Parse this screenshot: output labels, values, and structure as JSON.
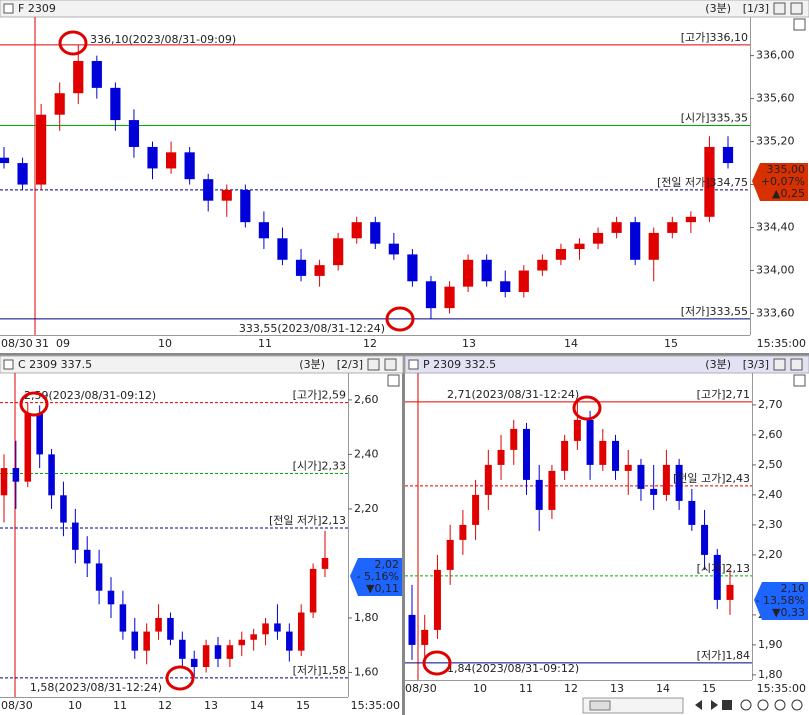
{
  "up_color": "#e00000",
  "down_color": "#0000d8",
  "panels": [
    {
      "title": "F 2309",
      "period": "(3분)",
      "page": "[1/3]",
      "ylim": [
        333.4,
        336.35
      ],
      "yticks": [
        {
          "value": 336.0,
          "label": "336,00"
        },
        {
          "value": 335.6,
          "label": "335,60"
        },
        {
          "value": 335.2,
          "label": "335,20"
        },
        {
          "value": 334.8,
          "label": "334,80"
        },
        {
          "value": 334.4,
          "label": "334,40"
        },
        {
          "value": 334.0,
          "label": "334,00"
        },
        {
          "value": 333.6,
          "label": "333,60"
        }
      ],
      "xlabels": [
        "08/30",
        "31",
        "09",
        "10",
        "11",
        "12",
        "13",
        "14",
        "15",
        "15:35:00"
      ],
      "refs": [
        {
          "label": "[고가]336,10",
          "value": 336.1,
          "color": "#e00000",
          "dash": false
        },
        {
          "label": "[시가]335,35",
          "value": 335.35,
          "color": "#00b000",
          "dash": false
        },
        {
          "label": "[전일 저가]334,75",
          "value": 334.75,
          "color": "#000080",
          "dash": true
        },
        {
          "label": "[저가]333,55",
          "value": 333.55,
          "color": "#000080",
          "dash": false
        }
      ],
      "annotations": [
        "336,10(2023/08/31-09:09)",
        "333,55(2023/08/31-12:24)"
      ],
      "tag": {
        "lines": [
          "335,00",
          "+0,07%",
          "▲0,25"
        ],
        "color": "#d83000"
      },
      "candles": [
        [
          335.05,
          335.15,
          334.95,
          335.0
        ],
        [
          335.0,
          335.05,
          334.75,
          334.8
        ],
        [
          334.8,
          335.55,
          334.75,
          335.45
        ],
        [
          335.45,
          335.75,
          335.3,
          335.65
        ],
        [
          335.65,
          336.1,
          335.55,
          335.95
        ],
        [
          335.95,
          336.0,
          335.6,
          335.7
        ],
        [
          335.7,
          335.75,
          335.3,
          335.4
        ],
        [
          335.4,
          335.5,
          335.05,
          335.15
        ],
        [
          335.15,
          335.2,
          334.85,
          334.95
        ],
        [
          334.95,
          335.2,
          334.9,
          335.1
        ],
        [
          335.1,
          335.15,
          334.8,
          334.85
        ],
        [
          334.85,
          334.9,
          334.55,
          334.65
        ],
        [
          334.65,
          334.8,
          334.5,
          334.75
        ],
        [
          334.75,
          334.8,
          334.4,
          334.45
        ],
        [
          334.45,
          334.55,
          334.2,
          334.3
        ],
        [
          334.3,
          334.4,
          334.05,
          334.1
        ],
        [
          334.1,
          334.2,
          333.9,
          333.95
        ],
        [
          333.95,
          334.1,
          333.85,
          334.05
        ],
        [
          334.05,
          334.35,
          334.0,
          334.3
        ],
        [
          334.3,
          334.5,
          334.25,
          334.45
        ],
        [
          334.45,
          334.5,
          334.2,
          334.25
        ],
        [
          334.25,
          334.35,
          334.1,
          334.15
        ],
        [
          334.15,
          334.2,
          333.85,
          333.9
        ],
        [
          333.9,
          333.95,
          333.55,
          333.65
        ],
        [
          333.65,
          333.9,
          333.6,
          333.85
        ],
        [
          333.85,
          334.15,
          333.8,
          334.1
        ],
        [
          334.1,
          334.15,
          333.85,
          333.9
        ],
        [
          333.9,
          334.0,
          333.75,
          333.8
        ],
        [
          333.8,
          334.05,
          333.75,
          334.0
        ],
        [
          334.0,
          334.15,
          333.95,
          334.1
        ],
        [
          334.1,
          334.25,
          334.05,
          334.2
        ],
        [
          334.2,
          334.3,
          334.1,
          334.25
        ],
        [
          334.25,
          334.4,
          334.2,
          334.35
        ],
        [
          334.35,
          334.5,
          334.3,
          334.45
        ],
        [
          334.45,
          334.5,
          334.05,
          334.1
        ],
        [
          334.1,
          334.4,
          333.9,
          334.35
        ],
        [
          334.35,
          334.5,
          334.3,
          334.45
        ],
        [
          334.45,
          334.55,
          334.35,
          334.5
        ],
        [
          334.5,
          335.25,
          334.45,
          335.15
        ],
        [
          335.15,
          335.25,
          334.95,
          335.0
        ]
      ]
    },
    {
      "title": "C 2309 337.5",
      "period": "(3분)",
      "page": "[2/3]",
      "ylim": [
        1.51,
        2.695
      ],
      "yticks": [
        {
          "value": 2.6,
          "label": "2,60"
        },
        {
          "value": 2.4,
          "label": "2,40"
        },
        {
          "value": 2.2,
          "label": "2,20"
        },
        {
          "value": 1.8,
          "label": "1,80"
        },
        {
          "value": 1.6,
          "label": "1,60"
        }
      ],
      "xlabels": [
        "08/30",
        "10",
        "11",
        "12",
        "13",
        "14",
        "15",
        "15:35:00"
      ],
      "refs": [
        {
          "label": "[고가]2,59",
          "value": 2.59,
          "color": "#e00000",
          "dash": true
        },
        {
          "label": "[시가]2,33",
          "value": 2.33,
          "color": "#00b000",
          "dash": true
        },
        {
          "label": "[전일 저가]2,13",
          "value": 2.13,
          "color": "#000080",
          "dash": true
        },
        {
          "label": "[저가]1,58",
          "value": 1.58,
          "color": "#000080",
          "dash": true
        }
      ],
      "annotations": [
        "2,59(2023/08/31-09:12)",
        "1,58(2023/08/31-12:24)"
      ],
      "tag": {
        "lines": [
          "2,02",
          "- 5,16%",
          "▼0,11"
        ],
        "color": "#1e64ff"
      },
      "candles": [
        [
          2.25,
          2.4,
          2.15,
          2.35
        ],
        [
          2.35,
          2.45,
          2.2,
          2.3
        ],
        [
          2.3,
          2.59,
          2.28,
          2.55
        ],
        [
          2.55,
          2.58,
          2.35,
          2.4
        ],
        [
          2.4,
          2.42,
          2.2,
          2.25
        ],
        [
          2.25,
          2.3,
          2.1,
          2.15
        ],
        [
          2.15,
          2.2,
          2.0,
          2.05
        ],
        [
          2.05,
          2.1,
          1.95,
          2.0
        ],
        [
          2.0,
          2.05,
          1.85,
          1.9
        ],
        [
          1.9,
          1.95,
          1.8,
          1.85
        ],
        [
          1.85,
          1.9,
          1.72,
          1.75
        ],
        [
          1.75,
          1.8,
          1.65,
          1.68
        ],
        [
          1.68,
          1.78,
          1.63,
          1.75
        ],
        [
          1.75,
          1.85,
          1.72,
          1.8
        ],
        [
          1.8,
          1.82,
          1.7,
          1.72
        ],
        [
          1.72,
          1.75,
          1.62,
          1.65
        ],
        [
          1.65,
          1.68,
          1.58,
          1.62
        ],
        [
          1.62,
          1.72,
          1.6,
          1.7
        ],
        [
          1.7,
          1.73,
          1.62,
          1.65
        ],
        [
          1.65,
          1.72,
          1.62,
          1.7
        ],
        [
          1.7,
          1.75,
          1.66,
          1.72
        ],
        [
          1.72,
          1.76,
          1.68,
          1.74
        ],
        [
          1.74,
          1.8,
          1.7,
          1.78
        ],
        [
          1.78,
          1.85,
          1.72,
          1.75
        ],
        [
          1.75,
          1.78,
          1.64,
          1.68
        ],
        [
          1.68,
          1.85,
          1.66,
          1.82
        ],
        [
          1.82,
          2.0,
          1.8,
          1.98
        ],
        [
          1.98,
          2.12,
          1.95,
          2.02
        ]
      ]
    },
    {
      "title": "P 2309 332.5",
      "period": "(3분)",
      "page": "[3/3]",
      "ylim": [
        1.783,
        2.803
      ],
      "yticks": [
        {
          "value": 2.7,
          "label": "2,70"
        },
        {
          "value": 2.6,
          "label": "2,60"
        },
        {
          "value": 2.5,
          "label": "2,50"
        },
        {
          "value": 2.4,
          "label": "2,40"
        },
        {
          "value": 2.3,
          "label": "2,30"
        },
        {
          "value": 2.2,
          "label": "2,20"
        },
        {
          "value": 2.0,
          "label": "2,00"
        },
        {
          "value": 1.9,
          "label": "1,90"
        },
        {
          "value": 1.8,
          "label": "1,80"
        }
      ],
      "xlabels": [
        "08/30",
        "10",
        "11",
        "12",
        "13",
        "14",
        "15",
        "15:35:00"
      ],
      "refs": [
        {
          "label": "[고가]2,71",
          "value": 2.71,
          "color": "#e00000",
          "dash": false
        },
        {
          "label": "[전일 고가]2,43",
          "value": 2.43,
          "color": "#e00000",
          "dash": true
        },
        {
          "label": "[시가]2,13",
          "value": 2.13,
          "color": "#00b000",
          "dash": true
        },
        {
          "label": "[저가]1,84",
          "value": 1.84,
          "color": "#000080",
          "dash": false
        }
      ],
      "annotations": [
        "2,71(2023/08/31-12:24)",
        "1,84(2023/08/31-09:12)"
      ],
      "tag": {
        "lines": [
          "2,10",
          "- 13,58%",
          "▼0,33"
        ],
        "color": "#1e64ff"
      },
      "candles": [
        [
          2.0,
          2.1,
          1.85,
          1.9
        ],
        [
          1.9,
          2.0,
          1.84,
          1.95
        ],
        [
          1.95,
          2.2,
          1.92,
          2.15
        ],
        [
          2.15,
          2.3,
          2.1,
          2.25
        ],
        [
          2.25,
          2.35,
          2.2,
          2.3
        ],
        [
          2.3,
          2.45,
          2.25,
          2.4
        ],
        [
          2.4,
          2.55,
          2.35,
          2.5
        ],
        [
          2.5,
          2.6,
          2.45,
          2.55
        ],
        [
          2.55,
          2.65,
          2.5,
          2.62
        ],
        [
          2.62,
          2.64,
          2.4,
          2.45
        ],
        [
          2.45,
          2.5,
          2.28,
          2.35
        ],
        [
          2.35,
          2.5,
          2.32,
          2.48
        ],
        [
          2.48,
          2.6,
          2.45,
          2.58
        ],
        [
          2.58,
          2.71,
          2.55,
          2.65
        ],
        [
          2.65,
          2.68,
          2.45,
          2.5
        ],
        [
          2.5,
          2.62,
          2.48,
          2.58
        ],
        [
          2.58,
          2.6,
          2.45,
          2.48
        ],
        [
          2.48,
          2.55,
          2.4,
          2.5
        ],
        [
          2.5,
          2.52,
          2.38,
          2.42
        ],
        [
          2.42,
          2.5,
          2.35,
          2.4
        ],
        [
          2.4,
          2.55,
          2.38,
          2.5
        ],
        [
          2.5,
          2.52,
          2.35,
          2.38
        ],
        [
          2.38,
          2.42,
          2.28,
          2.3
        ],
        [
          2.3,
          2.35,
          2.15,
          2.2
        ],
        [
          2.2,
          2.22,
          2.02,
          2.05
        ],
        [
          2.05,
          2.15,
          2.0,
          2.1
        ]
      ]
    }
  ]
}
